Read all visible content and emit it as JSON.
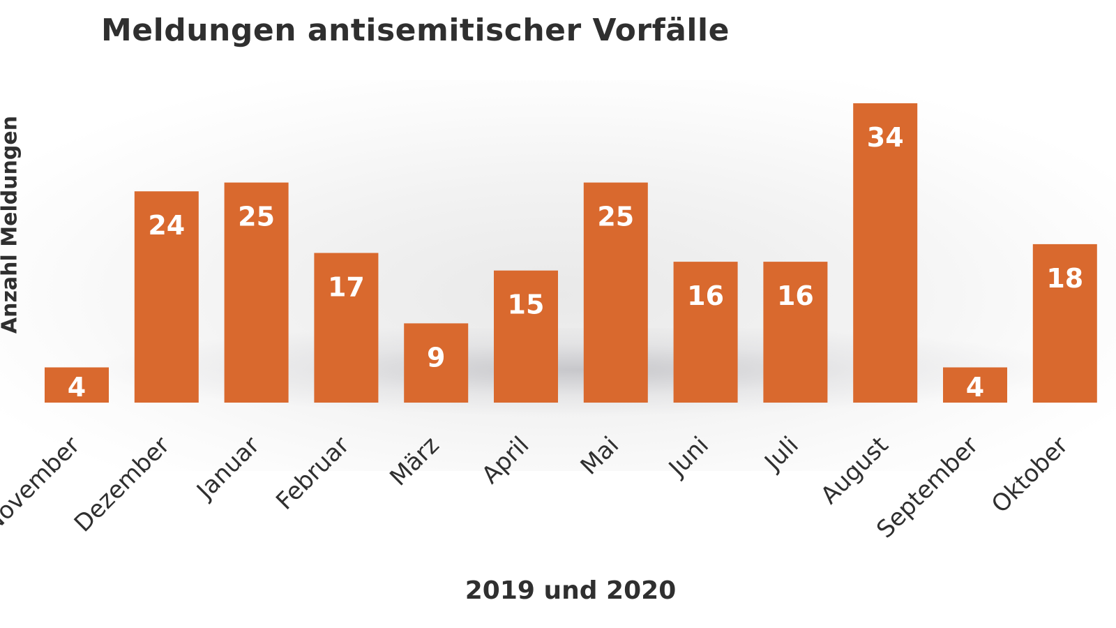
{
  "chart_data": {
    "type": "bar",
    "title": "Meldungen antisemitischer Vorfälle",
    "xlabel": "2019 und 2020",
    "ylabel": "Anzahl Meldungen",
    "categories": [
      "November",
      "Dezember",
      "Januar",
      "Februar",
      "März",
      "April",
      "Mai",
      "Juni",
      "Juli",
      "August",
      "September",
      "Oktober"
    ],
    "values": [
      4,
      24,
      25,
      17,
      9,
      15,
      25,
      16,
      16,
      34,
      4,
      18
    ],
    "data_labels": [
      "4",
      "24",
      "25",
      "17",
      "9",
      "15",
      "25",
      "16",
      "16",
      "34",
      "4",
      "18"
    ],
    "bar_color": "#d9692e",
    "label_color": "#ffffff",
    "text_color": "#2f2f2f",
    "ylim": [
      0,
      34
    ],
    "grid": false,
    "legend": "none"
  }
}
